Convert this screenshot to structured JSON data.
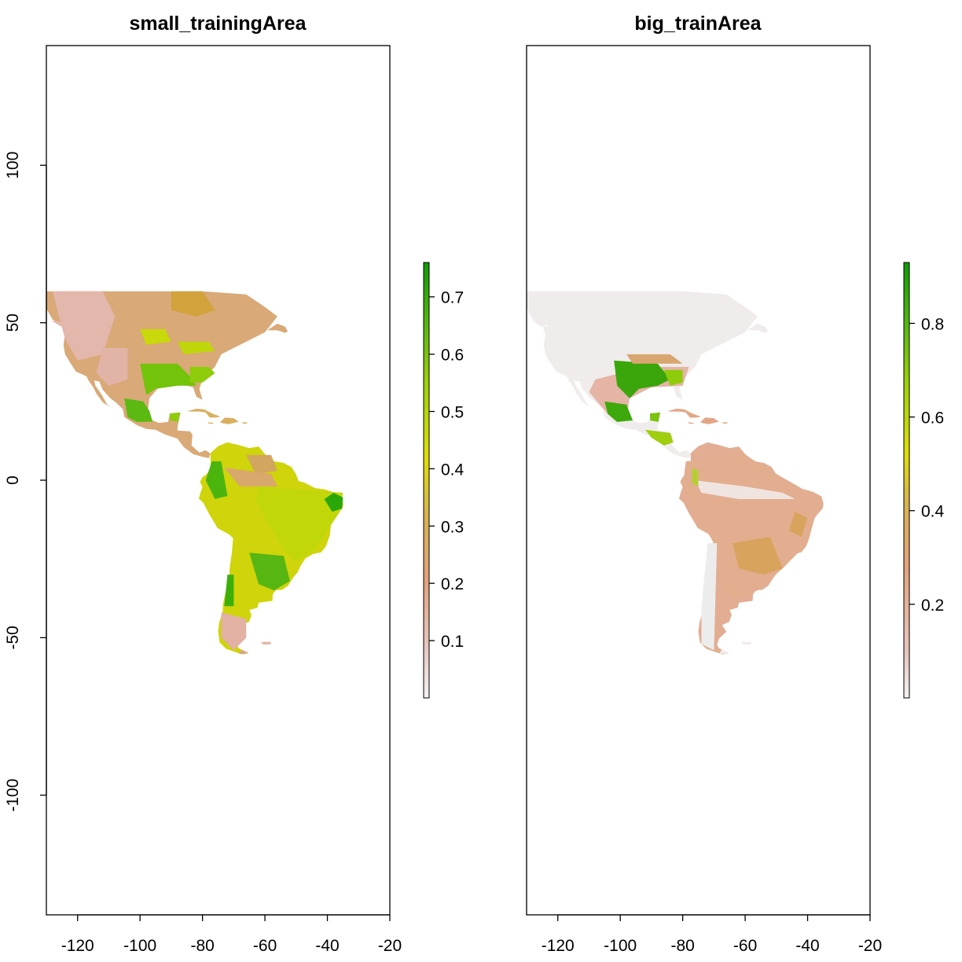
{
  "panels": [
    {
      "title": "small_trainingArea",
      "xlim": [
        -130,
        -20
      ],
      "ylim": [
        -138,
        138
      ],
      "x_ticks": [
        -120,
        -100,
        -80,
        -60,
        -40,
        -20
      ],
      "y_ticks": [
        100,
        50,
        0,
        -50,
        -100
      ],
      "legend": {
        "min": 0.0,
        "max": 0.76,
        "ticks": [
          0.1,
          0.2,
          0.3,
          0.4,
          0.5,
          0.6,
          0.7
        ]
      },
      "style": "small"
    },
    {
      "title": "big_trainArea",
      "xlim": [
        -130,
        -20
      ],
      "ylim": [
        -138,
        138
      ],
      "x_ticks": [
        -120,
        -100,
        -80,
        -60,
        -40,
        -20
      ],
      "y_ticks": [],
      "legend": {
        "min": 0.0,
        "max": 0.93,
        "ticks": [
          0.2,
          0.4,
          0.6,
          0.8
        ]
      },
      "style": "big"
    }
  ],
  "colors": {
    "scale": [
      "#f2f2f2",
      "#e8c6bf",
      "#e4a27c",
      "#d9b34f",
      "#dedd09",
      "#9ed10b",
      "#54b711",
      "#119a08"
    ]
  }
}
